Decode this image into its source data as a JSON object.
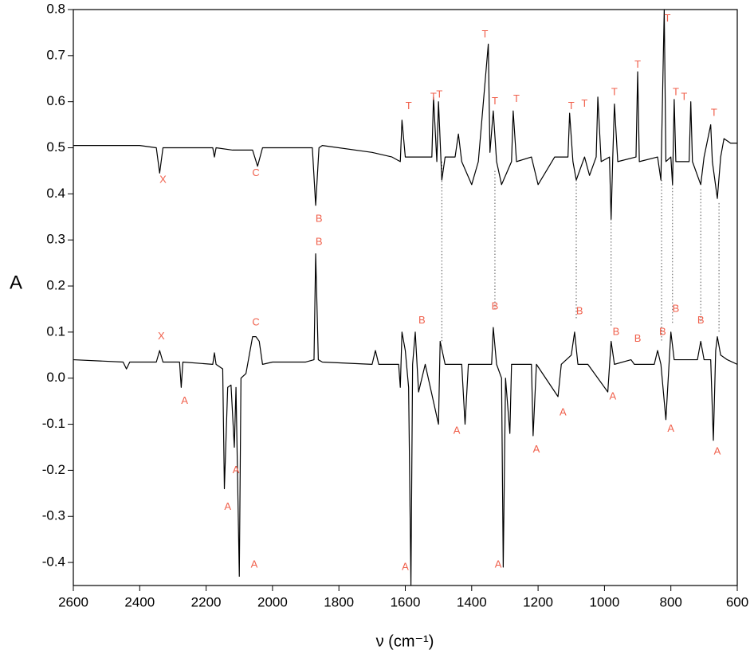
{
  "chart_data": {
    "type": "line",
    "x_label": "ν (cm⁻¹)",
    "y_label": "A",
    "xlim": [
      2600,
      600
    ],
    "ylim": [
      -0.45,
      0.8
    ],
    "xticks": [
      2600,
      2400,
      2200,
      2000,
      1800,
      1600,
      1400,
      1200,
      1000,
      800,
      600
    ],
    "yticks": [
      -0.4,
      -0.3,
      -0.2,
      -0.1,
      {
        "value": 0,
        "label": "0.0"
      },
      0.1,
      0.2,
      0.3,
      0.4,
      0.5,
      0.6,
      0.7,
      0.8
    ],
    "series": [
      {
        "color": "#000000",
        "x": [
          2600,
          2400,
          2350,
          2340,
          2330,
          2180,
          2175,
          2170,
          2120,
          2060,
          2045,
          2030,
          1880,
          1870,
          1860,
          1850,
          1700,
          1640,
          1615,
          1610,
          1600,
          1520,
          1515,
          1505,
          1500,
          1490,
          1480,
          1450,
          1440,
          1430,
          1400,
          1380,
          1350,
          1345,
          1335,
          1325,
          1310,
          1280,
          1275,
          1265,
          1220,
          1200,
          1150,
          1110,
          1105,
          1095,
          1085,
          1060,
          1045,
          1025,
          1020,
          1010,
          985,
          980,
          975,
          970,
          960,
          905,
          900,
          895,
          840,
          830,
          820,
          815,
          800,
          795,
          790,
          785,
          745,
          740,
          735,
          710,
          700,
          680,
          675,
          660,
          650,
          640,
          620,
          600
        ],
        "values": [
          0.505,
          0.505,
          0.5,
          0.445,
          0.5,
          0.5,
          0.48,
          0.5,
          0.495,
          0.495,
          0.46,
          0.5,
          0.5,
          0.375,
          0.5,
          0.505,
          0.49,
          0.48,
          0.47,
          0.56,
          0.48,
          0.48,
          0.61,
          0.47,
          0.6,
          0.43,
          0.48,
          0.48,
          0.53,
          0.47,
          0.42,
          0.47,
          0.725,
          0.49,
          0.58,
          0.47,
          0.42,
          0.47,
          0.58,
          0.47,
          0.48,
          0.42,
          0.48,
          0.48,
          0.575,
          0.47,
          0.43,
          0.48,
          0.44,
          0.48,
          0.61,
          0.47,
          0.48,
          0.345,
          0.48,
          0.595,
          0.47,
          0.48,
          0.665,
          0.47,
          0.48,
          0.43,
          0.8,
          0.47,
          0.48,
          0.42,
          0.605,
          0.47,
          0.47,
          0.6,
          0.47,
          0.42,
          0.48,
          0.55,
          0.47,
          0.39,
          0.48,
          0.52,
          0.51,
          0.51
        ]
      },
      {
        "color": "#000000",
        "x": [
          2600,
          2450,
          2440,
          2430,
          2350,
          2340,
          2330,
          2280,
          2275,
          2270,
          2180,
          2175,
          2170,
          2150,
          2145,
          2135,
          2125,
          2115,
          2110,
          2100,
          2095,
          2080,
          2060,
          2050,
          2040,
          2030,
          2000,
          1900,
          1875,
          1870,
          1862,
          1850,
          1700,
          1690,
          1680,
          1620,
          1615,
          1610,
          1600,
          1590,
          1583,
          1578,
          1570,
          1560,
          1540,
          1500,
          1495,
          1480,
          1430,
          1420,
          1410,
          1340,
          1335,
          1325,
          1310,
          1305,
          1298,
          1285,
          1280,
          1220,
          1215,
          1205,
          1140,
          1130,
          1100,
          1090,
          1080,
          1050,
          990,
          980,
          970,
          920,
          910,
          850,
          840,
          830,
          815,
          800,
          790,
          720,
          710,
          700,
          680,
          672,
          665,
          660,
          650,
          630,
          600
        ],
        "values": [
          0.04,
          0.035,
          0.02,
          0.035,
          0.035,
          0.06,
          0.035,
          0.035,
          -0.02,
          0.035,
          0.03,
          0.055,
          0.03,
          0.02,
          -0.24,
          -0.02,
          -0.015,
          -0.15,
          -0.02,
          -0.43,
          0.0,
          0.01,
          0.09,
          0.09,
          0.08,
          0.03,
          0.035,
          0.035,
          0.04,
          0.27,
          0.04,
          0.035,
          0.03,
          0.06,
          0.03,
          0.03,
          -0.02,
          0.1,
          0.06,
          -0.02,
          -0.45,
          0.03,
          0.1,
          -0.03,
          0.03,
          -0.1,
          0.08,
          0.03,
          0.03,
          -0.1,
          0.03,
          0.03,
          0.11,
          0.03,
          0.0,
          -0.41,
          0.0,
          -0.12,
          0.03,
          0.03,
          -0.125,
          0.03,
          -0.04,
          0.03,
          0.05,
          0.1,
          0.03,
          0.03,
          -0.03,
          0.08,
          0.03,
          0.04,
          0.03,
          0.03,
          0.06,
          0.03,
          -0.09,
          0.1,
          0.04,
          0.04,
          0.08,
          0.04,
          0.04,
          -0.135,
          0.06,
          0.09,
          0.05,
          0.04,
          0.03
        ]
      }
    ],
    "annotation_color": "#f0604c",
    "annotations": [
      {
        "text": "X",
        "x": 2330,
        "y": 0.43
      },
      {
        "text": "C",
        "x": 2050,
        "y": 0.445
      },
      {
        "text": "B",
        "x": 1860,
        "y": 0.345
      },
      {
        "text": "T",
        "x": 1590,
        "y": 0.59
      },
      {
        "text": "T",
        "x": 1515,
        "y": 0.61
      },
      {
        "text": "T",
        "x": 1497,
        "y": 0.615
      },
      {
        "text": "T",
        "x": 1360,
        "y": 0.745
      },
      {
        "text": "T",
        "x": 1330,
        "y": 0.6
      },
      {
        "text": "T",
        "x": 1265,
        "y": 0.605
      },
      {
        "text": "T",
        "x": 1100,
        "y": 0.59
      },
      {
        "text": "T",
        "x": 1060,
        "y": 0.595
      },
      {
        "text": "T",
        "x": 970,
        "y": 0.62
      },
      {
        "text": "T",
        "x": 900,
        "y": 0.68
      },
      {
        "text": "T",
        "x": 810,
        "y": 0.78
      },
      {
        "text": "T",
        "x": 785,
        "y": 0.62
      },
      {
        "text": "T",
        "x": 760,
        "y": 0.61
      },
      {
        "text": "T",
        "x": 670,
        "y": 0.575
      },
      {
        "text": "B",
        "x": 1860,
        "y": 0.295
      },
      {
        "text": "X",
        "x": 2335,
        "y": 0.09
      },
      {
        "text": "C",
        "x": 2050,
        "y": 0.12
      },
      {
        "text": "A",
        "x": 2265,
        "y": -0.05
      },
      {
        "text": "A",
        "x": 2135,
        "y": -0.28
      },
      {
        "text": "A",
        "x": 2110,
        "y": -0.2
      },
      {
        "text": "A",
        "x": 2055,
        "y": -0.405
      },
      {
        "text": "A",
        "x": 1600,
        "y": -0.41
      },
      {
        "text": "A",
        "x": 1320,
        "y": -0.405
      },
      {
        "text": "A",
        "x": 1445,
        "y": -0.115
      },
      {
        "text": "A",
        "x": 1205,
        "y": -0.155
      },
      {
        "text": "A",
        "x": 1125,
        "y": -0.075
      },
      {
        "text": "A",
        "x": 975,
        "y": -0.04
      },
      {
        "text": "A",
        "x": 800,
        "y": -0.11
      },
      {
        "text": "A",
        "x": 660,
        "y": -0.16
      },
      {
        "text": "B",
        "x": 1550,
        "y": 0.125
      },
      {
        "text": "B",
        "x": 1330,
        "y": 0.155
      },
      {
        "text": "B",
        "x": 1075,
        "y": 0.145
      },
      {
        "text": "B",
        "x": 965,
        "y": 0.1
      },
      {
        "text": "B",
        "x": 900,
        "y": 0.085
      },
      {
        "text": "B",
        "x": 825,
        "y": 0.1
      },
      {
        "text": "B",
        "x": 785,
        "y": 0.15
      },
      {
        "text": "B",
        "x": 710,
        "y": 0.125
      }
    ],
    "guides": [
      {
        "x": 1490,
        "y": [
          0.47,
          0.08
        ]
      },
      {
        "x": 1330,
        "y": [
          0.45,
          0.15
        ]
      },
      {
        "x": 1085,
        "y": [
          0.43,
          0.13
        ]
      },
      {
        "x": 980,
        "y": [
          0.345,
          0.11
        ]
      },
      {
        "x": 828,
        "y": [
          0.43,
          0.08
        ]
      },
      {
        "x": 795,
        "y": [
          0.42,
          0.12
        ]
      },
      {
        "x": 710,
        "y": [
          0.41,
          0.12
        ]
      },
      {
        "x": 655,
        "y": [
          0.38,
          0.1
        ]
      }
    ]
  }
}
